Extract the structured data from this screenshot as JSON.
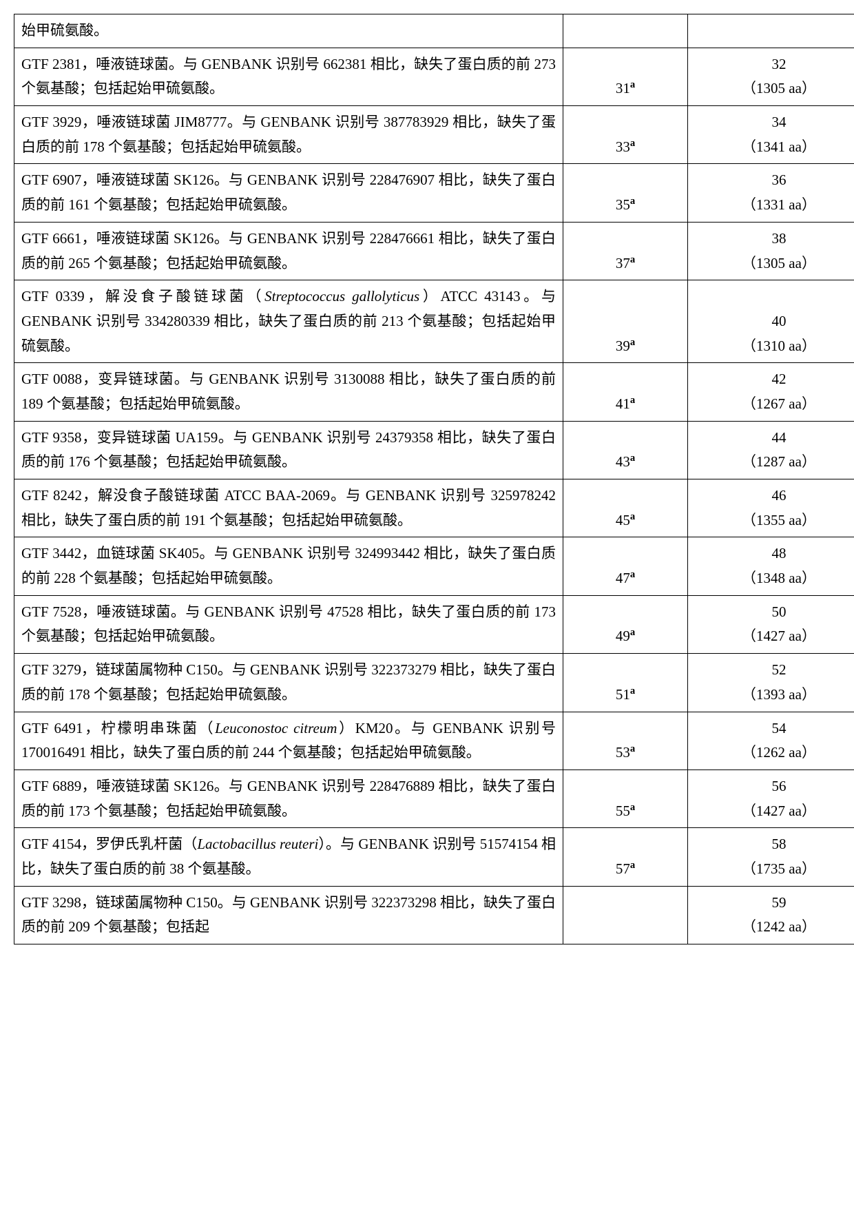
{
  "rows": [
    {
      "desc": "始甲硫氨酸。",
      "col2": "",
      "col3_a": "",
      "col3_b": ""
    },
    {
      "desc": "GTF 2381，唾液链球菌。与 GENBANK 识别号 662381 相比，缺失了蛋白质的前 273 个氨基酸；包括起始甲硫氨酸。",
      "col2": "31ª",
      "col3_a": "32",
      "col3_b": "（1305 aa）"
    },
    {
      "desc": "GTF 3929，唾液链球菌 JIM8777。与 GENBANK 识别号 387783929 相比，缺失了蛋白质的前 178 个氨基酸；包括起始甲硫氨酸。",
      "col2": "33ª",
      "col3_a": "34",
      "col3_b": "（1341 aa）"
    },
    {
      "desc": "GTF 6907，唾液链球菌 SK126。与 GENBANK 识别号 228476907 相比，缺失了蛋白质的前 161 个氨基酸；包括起始甲硫氨酸。",
      "col2": "35ª",
      "col3_a": "36",
      "col3_b": "（1331 aa）"
    },
    {
      "desc": "GTF 6661，唾液链球菌 SK126。与 GENBANK 识别号 228476661 相比，缺失了蛋白质的前 265 个氨基酸；包括起始甲硫氨酸。",
      "col2": "37ª",
      "col3_a": "38",
      "col3_b": "（1305 aa）"
    },
    {
      "desc": "GTF 0339，解没食子酸链球菌（<span class=\"latin\">Streptococcus gallolyticus</span>）ATCC 43143。与 GENBANK 识别号 334280339 相比，缺失了蛋白质的前 213 个氨基酸；包括起始甲硫氨酸。",
      "col2": "39ª",
      "col3_a": "40",
      "col3_b": "（1310 aa）"
    },
    {
      "desc": "GTF 0088，变异链球菌。与 GENBANK 识别号 3130088 相比，缺失了蛋白质的前 189 个氨基酸；包括起始甲硫氨酸。",
      "col2": "41ª",
      "col3_a": "42",
      "col3_b": "（1267 aa）"
    },
    {
      "desc": "GTF 9358，变异链球菌 UA159。与 GENBANK 识别号 24379358 相比，缺失了蛋白质的前 176 个氨基酸；包括起始甲硫氨酸。",
      "col2": "43ª",
      "col3_a": "44",
      "col3_b": "（1287 aa）"
    },
    {
      "desc": "GTF 8242，解没食子酸链球菌 ATCC BAA-2069。与 GENBANK 识别号 325978242 相比，缺失了蛋白质的前 191 个氨基酸；包括起始甲硫氨酸。",
      "col2": "45ª",
      "col3_a": "46",
      "col3_b": "（1355 aa）"
    },
    {
      "desc": "GTF 3442，血链球菌 SK405。与 GENBANK 识别号 324993442 相比，缺失了蛋白质的前 228 个氨基酸；包括起始甲硫氨酸。",
      "col2": "47ª",
      "col3_a": "48",
      "col3_b": "（1348 aa）"
    },
    {
      "desc": "GTF 7528，唾液链球菌。与 GENBANK 识别号 47528 相比，缺失了蛋白质的前 173 个氨基酸；包括起始甲硫氨酸。",
      "col2": "49ª",
      "col3_a": "50",
      "col3_b": "（1427 aa）"
    },
    {
      "desc": "GTF 3279，链球菌属物种 C150。与 GENBANK 识别号 322373279 相比，缺失了蛋白质的前 178 个氨基酸；包括起始甲硫氨酸。",
      "col2": "51ª",
      "col3_a": "52",
      "col3_b": "（1393 aa）"
    },
    {
      "desc": "GTF 6491，柠檬明串珠菌（<span class=\"latin\">Leuconostoc citreum</span>）KM20。与 GENBANK 识别号 170016491 相比，缺失了蛋白质的前 244 个氨基酸；包括起始甲硫氨酸。",
      "col2": "53ª",
      "col3_a": "54",
      "col3_b": "（1262 aa）"
    },
    {
      "desc": "GTF 6889，唾液链球菌 SK126。与 GENBANK 识别号 228476889 相比，缺失了蛋白质的前 173 个氨基酸；包括起始甲硫氨酸。",
      "col2": "55ª",
      "col3_a": "56",
      "col3_b": "（1427 aa）"
    },
    {
      "desc": "GTF 4154，罗伊氏乳杆菌（<span class=\"latin\">Lactobacillus reuteri</span>）。与 GENBANK 识别号 51574154 相比，缺失了蛋白质的前 38 个氨基酸。",
      "col2": "57ª",
      "col3_a": "58",
      "col3_b": "（1735 aa）"
    },
    {
      "desc": "GTF 3298，链球菌属物种 C150。与 GENBANK 识别号 322373298 相比，缺失了蛋白质的前 209 个氨基酸；包括起",
      "col2": "",
      "col3_a": "59",
      "col3_b": "（1242 aa）"
    }
  ]
}
